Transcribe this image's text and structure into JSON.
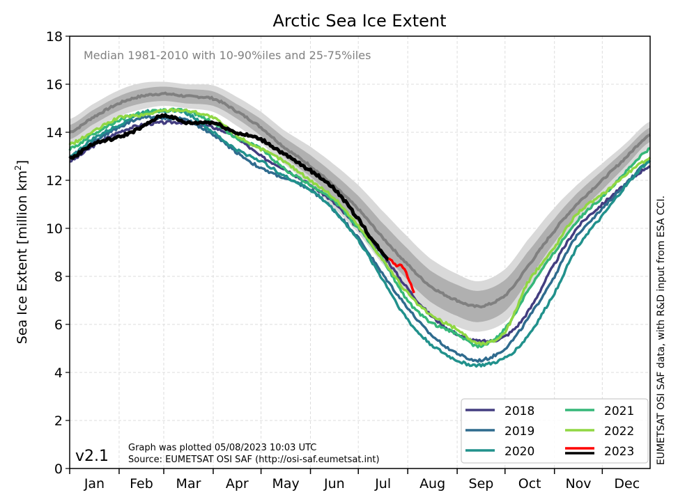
{
  "chart_data": {
    "type": "line",
    "title": "Arctic Sea Ice Extent",
    "subtitle": "Median 1981-2010 with 10-90%iles and 25-75%iles",
    "ylabel": "Sea Ice Extent [million km",
    "ylabel_sup": "2",
    "ylabel_end": "]",
    "ylim": [
      0,
      18
    ],
    "yticks": [
      0,
      2,
      4,
      6,
      8,
      10,
      12,
      14,
      16,
      18
    ],
    "months": [
      "Jan",
      "Feb",
      "Mar",
      "Apr",
      "May",
      "Jun",
      "Jul",
      "Aug",
      "Sep",
      "Oct",
      "Nov",
      "Dec"
    ],
    "grid": true,
    "legend_placement": "lower-right",
    "version": "v2.1",
    "note_line1": "Graph was plotted 05/08/2023 10:03 UTC",
    "note_line2": "Source: EUMETSAT OSI SAF (http://osi-saf.eumetsat.int)",
    "side_credit": "EUMETSAT OSI SAF data, with R&D input from ESA CCI.",
    "x_day_of_year": [
      1,
      15,
      32,
      46,
      60,
      74,
      91,
      105,
      121,
      135,
      152,
      166,
      182,
      196,
      213,
      227,
      244,
      258,
      274,
      288,
      305,
      319,
      335,
      349,
      365
    ],
    "median": [
      14.0,
      14.6,
      15.2,
      15.5,
      15.6,
      15.5,
      15.4,
      14.9,
      14.2,
      13.4,
      12.6,
      11.8,
      10.8,
      9.7,
      8.5,
      7.6,
      7.0,
      6.75,
      7.2,
      8.4,
      9.9,
      11.0,
      12.0,
      12.9,
      13.9
    ],
    "p25_75_halfwidth": [
      0.3,
      0.3,
      0.3,
      0.3,
      0.3,
      0.3,
      0.3,
      0.3,
      0.35,
      0.4,
      0.45,
      0.5,
      0.55,
      0.6,
      0.65,
      0.65,
      0.65,
      0.65,
      0.65,
      0.6,
      0.5,
      0.45,
      0.4,
      0.35,
      0.3
    ],
    "p10_90_halfwidth": [
      0.55,
      0.55,
      0.55,
      0.55,
      0.5,
      0.5,
      0.55,
      0.6,
      0.65,
      0.7,
      0.8,
      0.9,
      1.0,
      1.1,
      1.15,
      1.15,
      1.1,
      1.05,
      1.1,
      1.1,
      0.95,
      0.8,
      0.7,
      0.6,
      0.55
    ],
    "colors": {
      "median": "#808080",
      "band_inner": "#b0b0b0",
      "band_outer": "#d9d9d9"
    },
    "series": [
      {
        "name": "2018",
        "color": "#433d80",
        "values": [
          12.8,
          13.4,
          14.0,
          14.3,
          14.4,
          14.4,
          14.2,
          13.8,
          13.0,
          12.5,
          11.8,
          11.1,
          10.0,
          9.0,
          7.5,
          6.4,
          5.6,
          5.3,
          5.5,
          6.5,
          8.5,
          10.0,
          11.0,
          11.8,
          12.6
        ]
      },
      {
        "name": "2019",
        "color": "#2f6b8e",
        "values": [
          13.0,
          13.6,
          14.2,
          14.6,
          14.6,
          14.5,
          13.9,
          13.2,
          12.5,
          12.1,
          11.6,
          10.8,
          9.6,
          8.2,
          6.7,
          5.6,
          4.8,
          4.5,
          5.0,
          6.2,
          8.0,
          9.7,
          10.8,
          11.8,
          12.8
        ]
      },
      {
        "name": "2020",
        "color": "#21918c",
        "values": [
          13.0,
          13.7,
          14.3,
          14.8,
          14.9,
          14.8,
          14.0,
          13.3,
          12.8,
          12.2,
          11.6,
          10.8,
          9.5,
          8.0,
          6.2,
          5.2,
          4.5,
          4.3,
          4.6,
          5.5,
          7.3,
          9.2,
          10.5,
          11.7,
          12.8
        ]
      },
      {
        "name": "2021",
        "color": "#35b779",
        "values": [
          13.3,
          13.9,
          14.5,
          14.8,
          14.9,
          14.9,
          14.4,
          13.8,
          13.3,
          12.5,
          11.8,
          11.2,
          10.0,
          8.8,
          7.0,
          6.1,
          5.6,
          5.1,
          5.8,
          7.4,
          9.0,
          10.3,
          11.3,
          12.3,
          13.3
        ]
      },
      {
        "name": "2022",
        "color": "#90d743",
        "values": [
          13.5,
          14.0,
          14.6,
          14.7,
          14.9,
          14.9,
          14.6,
          13.9,
          13.3,
          12.8,
          12.0,
          11.3,
          10.1,
          8.8,
          7.3,
          6.4,
          5.8,
          5.2,
          5.7,
          7.7,
          9.2,
          10.6,
          11.4,
          12.2,
          12.9
        ]
      },
      {
        "name": "2023",
        "color": "#000000",
        "x": [
          1,
          15,
          32,
          46,
          60,
          74,
          91,
          105,
          121,
          135,
          152,
          166,
          182,
          196,
          201
        ],
        "values": [
          12.9,
          13.5,
          13.8,
          14.2,
          14.7,
          14.4,
          14.4,
          14.0,
          13.7,
          13.1,
          12.4,
          11.7,
          10.4,
          9.1,
          8.72
        ]
      },
      {
        "name": "2023",
        "color": "#ff0000",
        "x": [
          201,
          205,
          210,
          213,
          217
        ],
        "values": [
          8.72,
          8.5,
          8.4,
          8.0,
          7.33
        ]
      }
    ]
  }
}
